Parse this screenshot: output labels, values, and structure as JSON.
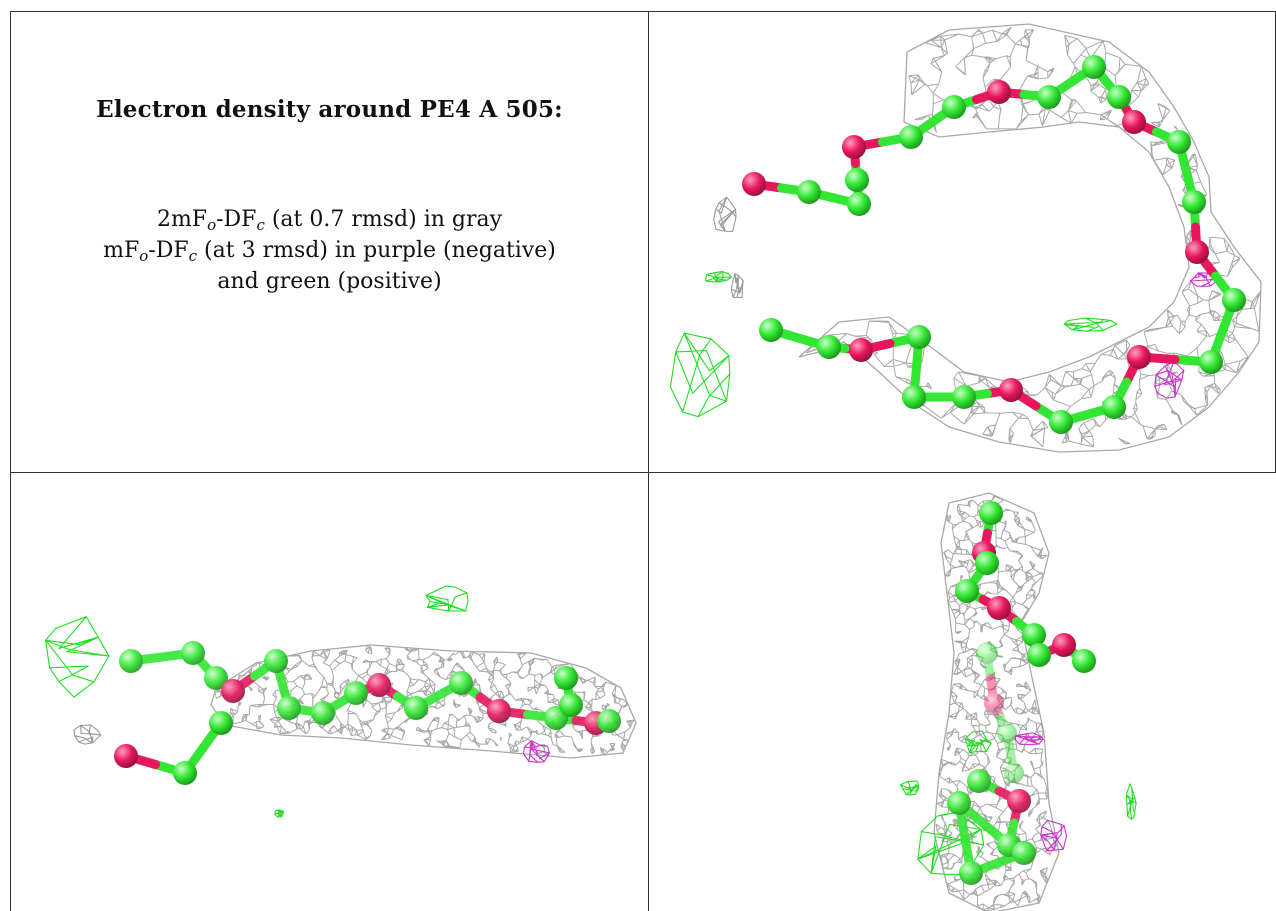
{
  "panel_text": {
    "title": "Electron density around PE4 A 505:",
    "line1": {
      "a": "2mF",
      "a_sub": "o",
      "b": "-DF",
      "b_sub": "c",
      "rest": " (at 0.7 rmsd) in gray"
    },
    "line2": {
      "a": "mF",
      "a_sub": "o",
      "b": "-DF",
      "b_sub": "c",
      "rest": " (at 3 rmsd) in purple (negative)"
    },
    "line3": "and green (positive)"
  },
  "colors": {
    "mesh_gray": "#9a9a9a",
    "carbon_green": "#33e633",
    "oxygen_pink": "#e8175d",
    "positive_green": "#22dd22",
    "negative_purple": "#cc33cc",
    "grid_line": "#333333"
  },
  "views": [
    "top-view",
    "side-view",
    "end-view"
  ]
}
